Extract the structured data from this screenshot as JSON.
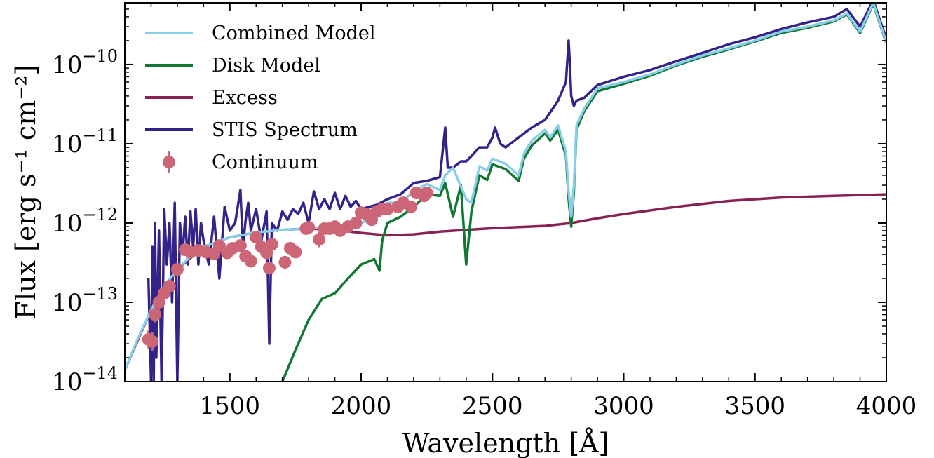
{
  "chart_data": {
    "type": "line",
    "xlabel": "Wavelength [Å]",
    "ylabel": "Flux [erg s⁻¹ cm⁻²]",
    "x_scale": "linear",
    "y_scale": "log",
    "xlim": [
      1100,
      4000
    ],
    "ylim": [
      1e-14,
      6e-10
    ],
    "x_ticks": [
      1500,
      2000,
      2500,
      3000,
      3500,
      4000
    ],
    "x_tick_labels": [
      "1500",
      "2000",
      "2500",
      "3000",
      "3500",
      "4000"
    ],
    "y_ticks": [
      1e-14,
      1e-13,
      1e-12,
      1e-11,
      1e-10
    ],
    "y_tick_labels": [
      {
        "base": "10",
        "exp": "−14"
      },
      {
        "base": "10",
        "exp": "−13"
      },
      {
        "base": "10",
        "exp": "−12"
      },
      {
        "base": "10",
        "exp": "−11"
      },
      {
        "base": "10",
        "exp": "−10"
      }
    ],
    "grid": false,
    "legend_position": "top-left",
    "series": [
      {
        "name": "Combined Model",
        "color": "#87CEEB",
        "kind": "line",
        "x": [
          1100,
          1150,
          1200,
          1250,
          1300,
          1350,
          1400,
          1500,
          1600,
          1700,
          1800,
          1900,
          2000,
          2050,
          2080,
          2100,
          2150,
          2200,
          2250,
          2300,
          2320,
          2350,
          2400,
          2420,
          2450,
          2480,
          2500,
          2550,
          2600,
          2620,
          2650,
          2700,
          2720,
          2750,
          2780,
          2790,
          2800,
          2810,
          2820,
          2850,
          2900,
          3000,
          3100,
          3200,
          3300,
          3400,
          3500,
          3600,
          3700,
          3800,
          3850,
          3900,
          3950,
          4000
        ],
        "y": [
          1.4e-14,
          3.5e-14,
          8e-14,
          1.6e-13,
          2.6e-13,
          3.8e-13,
          5e-13,
          6.6e-13,
          7.6e-13,
          8.2e-13,
          8.5e-13,
          8.9e-13,
          1e-12,
          1.2e-12,
          1.45e-12,
          1.8e-12,
          1.8e-12,
          2.5e-12,
          3.1e-12,
          2.6e-12,
          4e-12,
          5e-12,
          2e-12,
          1.8e-12,
          5.2e-12,
          4.6e-12,
          6.5e-12,
          5.6e-12,
          4e-12,
          7.5e-12,
          1.1e-11,
          1.5e-11,
          1.2e-11,
          1.7e-11,
          8e-12,
          2.5e-12,
          1.2e-12,
          3e-12,
          1.7e-11,
          2.8e-11,
          5e-11,
          6e-11,
          7.5e-11,
          1e-10,
          1.3e-10,
          1.6e-10,
          2e-10,
          2.6e-10,
          3e-10,
          3.6e-10,
          4.4e-10,
          2.6e-10,
          6e-10,
          1.9e-10
        ]
      },
      {
        "name": "Disk Model",
        "color": "#117733",
        "kind": "line",
        "x": [
          1700,
          1750,
          1800,
          1850,
          1900,
          1950,
          2000,
          2050,
          2070,
          2080,
          2100,
          2150,
          2200,
          2250,
          2300,
          2320,
          2350,
          2380,
          2400,
          2420,
          2450,
          2480,
          2500,
          2550,
          2600,
          2620,
          2650,
          2700,
          2720,
          2750,
          2780,
          2790,
          2800,
          2810,
          2820,
          2850,
          2900,
          3000,
          3100,
          3200,
          3300,
          3400,
          3500,
          3600,
          3700,
          3800,
          3850,
          3900,
          3950,
          4000
        ],
        "y": [
          1e-14,
          2.5e-14,
          6e-14,
          1.1e-13,
          1.3e-13,
          2e-13,
          3e-13,
          3.5e-13,
          2.5e-13,
          6e-13,
          1e-12,
          1.2e-12,
          1.6e-12,
          2.3e-12,
          2.2e-12,
          3.2e-12,
          1.2e-12,
          3e-12,
          3e-13,
          1.4e-12,
          4e-12,
          3.5e-12,
          5.5e-12,
          4.8e-12,
          3.4e-12,
          6.5e-12,
          9.5e-12,
          1.35e-11,
          1.1e-11,
          1.5e-11,
          7e-12,
          2e-12,
          9e-13,
          2.5e-12,
          1.5e-11,
          2.6e-11,
          4.6e-11,
          5.7e-11,
          7.2e-11,
          9.7e-11,
          1.25e-10,
          1.55e-10,
          1.95e-10,
          2.5e-10,
          2.9e-10,
          3.5e-10,
          4.3e-10,
          2.5e-10,
          5.8e-10,
          1.85e-10
        ]
      },
      {
        "name": "Excess",
        "color": "#882255",
        "kind": "line",
        "x": [
          1100,
          1200,
          1300,
          1400,
          1500,
          1600,
          1700,
          1800,
          1900,
          2000,
          2100,
          2200,
          2300,
          2400,
          2500,
          2600,
          2700,
          2800,
          2900,
          3000,
          3200,
          3400,
          3600,
          3800,
          4000
        ],
        "y": [
          1.4e-14,
          8e-14,
          2.6e-13,
          5e-13,
          6.6e-13,
          7.6e-13,
          8.2e-13,
          8.5e-13,
          8.2e-13,
          7.5e-13,
          7e-13,
          7.2e-13,
          7.8e-13,
          8.2e-13,
          8.6e-13,
          8.9e-13,
          9.2e-13,
          1e-12,
          1.15e-12,
          1.3e-12,
          1.6e-12,
          1.9e-12,
          2.1e-12,
          2.2e-12,
          2.3e-12
        ]
      },
      {
        "name": "STIS Spectrum",
        "color": "#332288",
        "kind": "line",
        "x": [
          1190,
          1200,
          1205,
          1210,
          1215,
          1220,
          1230,
          1240,
          1250,
          1260,
          1270,
          1280,
          1290,
          1300,
          1310,
          1320,
          1330,
          1340,
          1350,
          1360,
          1370,
          1380,
          1390,
          1400,
          1420,
          1440,
          1460,
          1480,
          1500,
          1520,
          1540,
          1550,
          1560,
          1570,
          1580,
          1600,
          1620,
          1640,
          1650,
          1660,
          1680,
          1700,
          1720,
          1740,
          1760,
          1780,
          1800,
          1820,
          1840,
          1860,
          1880,
          1900,
          1920,
          1940,
          1960,
          1980,
          2000,
          2030,
          2060,
          2100,
          2150,
          2200,
          2250,
          2300,
          2320,
          2330,
          2350,
          2380,
          2400,
          2420,
          2450,
          2480,
          2500,
          2510,
          2530,
          2550,
          2600,
          2650,
          2700,
          2720,
          2750,
          2780,
          2790,
          2795,
          2800,
          2810,
          2820,
          2850,
          2900,
          3000,
          3100,
          3200,
          3300,
          3400,
          3500,
          3600,
          3700,
          3800,
          3850,
          3900,
          3950,
          4000
        ],
        "y": [
          2e-13,
          1e-14,
          5e-13,
          1e-14,
          1e-12,
          2e-14,
          8e-13,
          1e-14,
          1.5e-12,
          3e-13,
          1e-12,
          1e-13,
          1.8e-12,
          1e-14,
          1e-12,
          4e-13,
          1.2e-12,
          3e-13,
          1.4e-12,
          5e-13,
          1.5e-12,
          3e-13,
          1e-12,
          6e-13,
          3e-13,
          1.2e-12,
          2e-13,
          1.6e-12,
          8e-13,
          1e-12,
          2.6e-12,
          5e-13,
          1.1e-12,
          1.8e-12,
          8e-13,
          1.5e-12,
          6e-13,
          1.4e-12,
          3e-14,
          1e-12,
          8e-13,
          1.4e-12,
          1.1e-12,
          1.5e-12,
          1.3e-12,
          1.8e-12,
          1e-12,
          2.5e-12,
          1.5e-12,
          2e-12,
          1.5e-12,
          2.4e-12,
          1.5e-12,
          2.2e-12,
          1.6e-12,
          1.9e-12,
          1.5e-12,
          1.6e-12,
          1.7e-12,
          2e-12,
          2.3e-12,
          3.2e-12,
          3.4e-12,
          3.8e-12,
          1.6e-11,
          5e-12,
          5e-12,
          6e-12,
          6e-12,
          7e-12,
          9e-12,
          9e-12,
          1.2e-11,
          1.6e-11,
          1e-11,
          9e-12,
          1.2e-11,
          1.6e-11,
          2e-11,
          2.5e-11,
          3.5e-11,
          6e-11,
          2e-10,
          1e-10,
          4e-11,
          3e-11,
          3.5e-11,
          3.8e-11,
          5.5e-11,
          7e-11,
          8.5e-11,
          1.1e-10,
          1.4e-10,
          1.8e-10,
          2.2e-10,
          2.8e-10,
          3.4e-10,
          4e-10,
          5e-10,
          3e-10,
          6.5e-10,
          2.1e-10
        ]
      },
      {
        "name": "Continuum",
        "color": "#CC6677",
        "kind": "errorbar",
        "x": [
          1190,
          1205,
          1215,
          1230,
          1250,
          1270,
          1300,
          1330,
          1350,
          1380,
          1410,
          1440,
          1460,
          1490,
          1510,
          1540,
          1560,
          1580,
          1600,
          1620,
          1640,
          1650,
          1660,
          1710,
          1730,
          1750,
          1790,
          1800,
          1840,
          1860,
          1880,
          1900,
          1920,
          1950,
          1980,
          2000,
          2020,
          2040,
          2060,
          2080,
          2100,
          2140,
          2160,
          2190,
          2210,
          2240,
          2250
        ],
        "y": [
          3.4e-14,
          3.2e-14,
          7e-14,
          1e-13,
          1.3e-13,
          1.6e-13,
          2.6e-13,
          4.6e-13,
          4.3e-13,
          4.5e-13,
          4.3e-13,
          4.1e-13,
          5.2e-13,
          4.2e-13,
          4.8e-13,
          5.2e-13,
          3.8e-13,
          3.3e-13,
          6.6e-13,
          5e-13,
          4.2e-13,
          2.7e-13,
          5.4e-13,
          3.2e-13,
          4.8e-13,
          4.3e-13,
          8.5e-13,
          8.8e-13,
          6.2e-13,
          8.5e-13,
          8.5e-13,
          9e-13,
          8e-13,
          9e-13,
          1e-12,
          1.35e-12,
          1.3e-12,
          1.1e-12,
          1.4e-12,
          1.5e-12,
          1.5e-12,
          1.6e-12,
          1.8e-12,
          1.6e-12,
          2.4e-12,
          2.2e-12,
          2.4e-12
        ],
        "err_factor": [
          1.3,
          1.3,
          1.25,
          1.25,
          1.2,
          1.2,
          1.2,
          1.15,
          1.15,
          1.15,
          1.15,
          1.15,
          1.15,
          1.15,
          1.15,
          1.15,
          1.15,
          1.2,
          1.15,
          1.15,
          1.15,
          1.2,
          1.15,
          1.2,
          1.15,
          1.15,
          1.15,
          1.15,
          1.25,
          1.15,
          1.15,
          1.15,
          1.15,
          1.15,
          1.15,
          1.15,
          1.15,
          1.15,
          1.15,
          1.15,
          1.15,
          1.15,
          1.15,
          1.15,
          1.15,
          1.15,
          1.15
        ]
      }
    ],
    "legend_order": [
      "Combined Model",
      "Disk Model",
      "Excess",
      "STIS Spectrum",
      "Continuum"
    ],
    "draw_order": [
      "STIS Spectrum",
      "Excess",
      "Disk Model",
      "Combined Model",
      "Continuum"
    ]
  }
}
